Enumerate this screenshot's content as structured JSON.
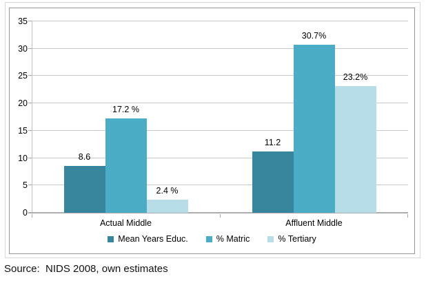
{
  "figure": {
    "source_note": "Source:  NIDS 2008, own estimates"
  },
  "colors": {
    "outer_border": "#d9d9d9",
    "inner_border": "#969696",
    "gridline": "#c9c9c9",
    "axis_line": "#adadad",
    "background": "#ffffff",
    "text": "#000000"
  },
  "chart_data": {
    "type": "bar",
    "title": "",
    "xlabel": "",
    "ylabel": "",
    "categories": [
      "Actual Middle",
      "Affluent Middle"
    ],
    "series": [
      {
        "name": "Mean Years Educ.",
        "color": "#38869d",
        "values": [
          8.6,
          11.2
        ],
        "data_labels": [
          "8.6",
          "11.2"
        ]
      },
      {
        "name": "% Matric",
        "color": "#4bacc6",
        "values": [
          17.2,
          30.7
        ],
        "data_labels": [
          "17.2 %",
          "30.7%"
        ]
      },
      {
        "name": "% Tertiary",
        "color": "#b7dee8",
        "values": [
          2.4,
          23.2
        ],
        "data_labels": [
          "2.4 %",
          "23.2%"
        ]
      }
    ],
    "ylim": [
      0,
      35
    ],
    "ytick_step": 5,
    "ytick_labels": [
      "0",
      "5",
      "10",
      "15",
      "20",
      "25",
      "30",
      "35"
    ],
    "grid": true,
    "legend_position": "bottom"
  }
}
